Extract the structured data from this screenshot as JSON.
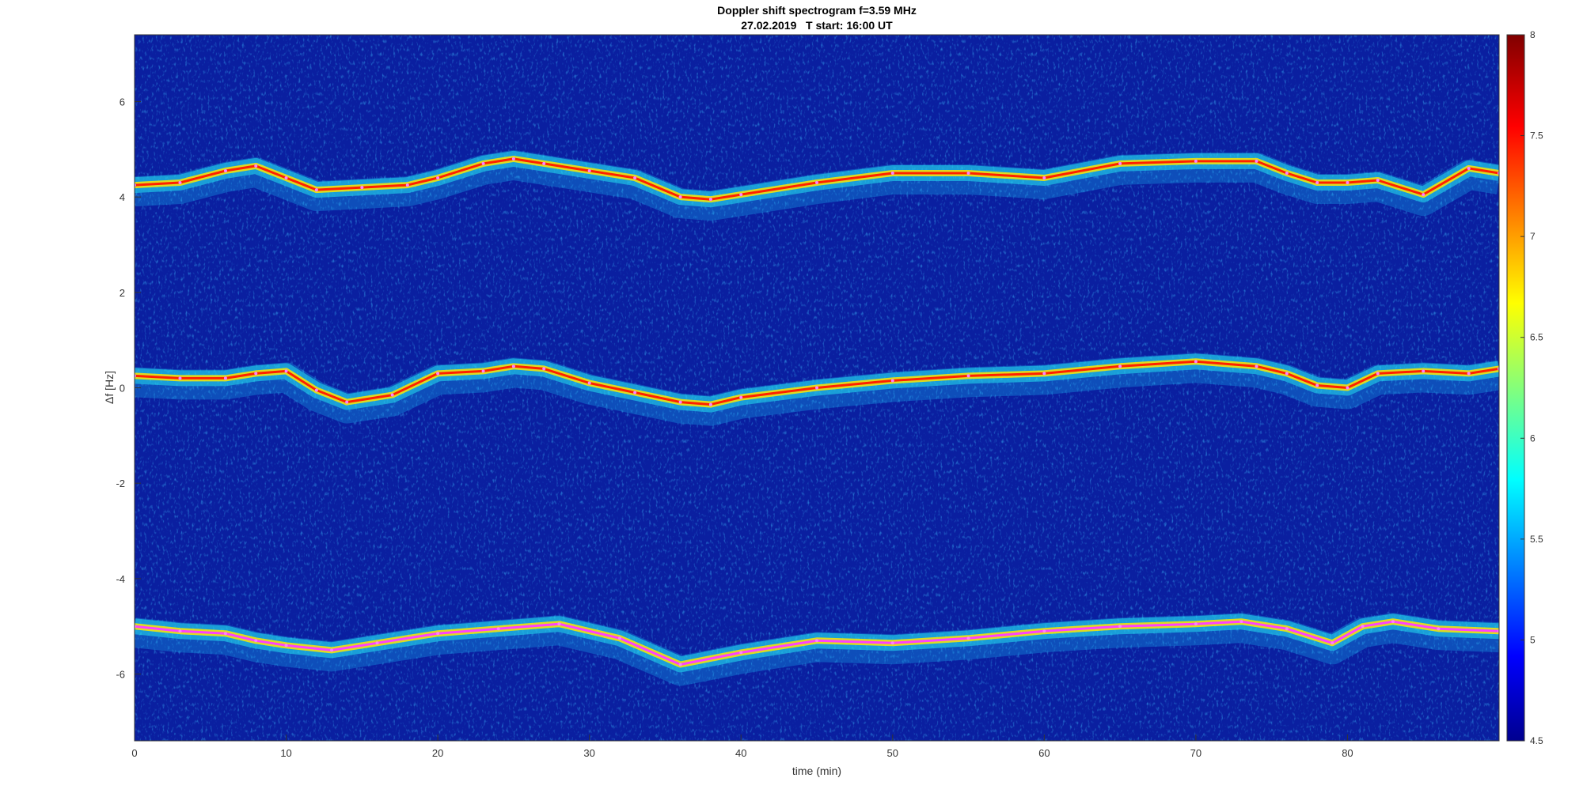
{
  "chart_data": {
    "type": "heatmap",
    "title": "Doppler shift spectrogram f=3.59 MHz",
    "subtitle": "27.02.2019   T start: 16:00 UT",
    "xlabel": "time (min)",
    "ylabel": "Δf [Hz]",
    "xlim": [
      0,
      90
    ],
    "ylim": [
      -7.4,
      7.4
    ],
    "xticks": [
      0,
      10,
      20,
      30,
      40,
      50,
      60,
      70,
      80
    ],
    "yticks": [
      -6,
      -4,
      -2,
      0,
      2,
      4,
      6
    ],
    "colorbar": {
      "label_ticks": [
        4.5,
        5,
        5.5,
        6,
        6.5,
        7,
        7.5,
        8
      ],
      "range": [
        4.5,
        8
      ],
      "colormap": "jet"
    },
    "background_color": "#0a1fa0",
    "series": [
      {
        "band": "upper",
        "x": [
          0,
          3,
          6,
          8,
          10,
          12,
          15,
          18,
          20,
          23,
          25,
          27,
          30,
          33,
          36,
          38,
          40,
          45,
          50,
          55,
          60,
          65,
          70,
          74,
          76,
          78,
          80,
          82,
          85,
          88,
          90
        ],
        "y": [
          4.25,
          4.3,
          4.55,
          4.65,
          4.4,
          4.15,
          4.2,
          4.25,
          4.4,
          4.7,
          4.8,
          4.7,
          4.55,
          4.4,
          4.0,
          3.95,
          4.05,
          4.3,
          4.5,
          4.5,
          4.4,
          4.7,
          4.75,
          4.75,
          4.5,
          4.3,
          4.3,
          4.35,
          4.05,
          4.6,
          4.5
        ],
        "color": "#ff2000"
      },
      {
        "band": "middle",
        "x": [
          0,
          3,
          6,
          8,
          10,
          12,
          14,
          17,
          20,
          23,
          25,
          27,
          30,
          33,
          36,
          38,
          40,
          45,
          50,
          55,
          60,
          65,
          70,
          74,
          76,
          78,
          80,
          82,
          85,
          88,
          90
        ],
        "y": [
          0.25,
          0.2,
          0.2,
          0.3,
          0.35,
          -0.05,
          -0.3,
          -0.15,
          0.3,
          0.35,
          0.45,
          0.4,
          0.1,
          -0.1,
          -0.3,
          -0.35,
          -0.2,
          0.0,
          0.15,
          0.25,
          0.3,
          0.45,
          0.55,
          0.45,
          0.3,
          0.05,
          0.0,
          0.3,
          0.35,
          0.3,
          0.4
        ],
        "color": "#ff2000"
      },
      {
        "band": "lower",
        "x": [
          0,
          3,
          6,
          8,
          10,
          13,
          16,
          20,
          24,
          28,
          32,
          36,
          40,
          45,
          50,
          55,
          60,
          65,
          70,
          73,
          76,
          79,
          81,
          83,
          86,
          90
        ],
        "y": [
          -5.0,
          -5.1,
          -5.15,
          -5.3,
          -5.4,
          -5.5,
          -5.35,
          -5.15,
          -5.05,
          -4.95,
          -5.25,
          -5.8,
          -5.55,
          -5.3,
          -5.35,
          -5.25,
          -5.1,
          -5.0,
          -4.95,
          -4.9,
          -5.05,
          -5.35,
          -5.0,
          -4.9,
          -5.05,
          -5.1
        ],
        "color": "#ff40ff"
      }
    ]
  }
}
